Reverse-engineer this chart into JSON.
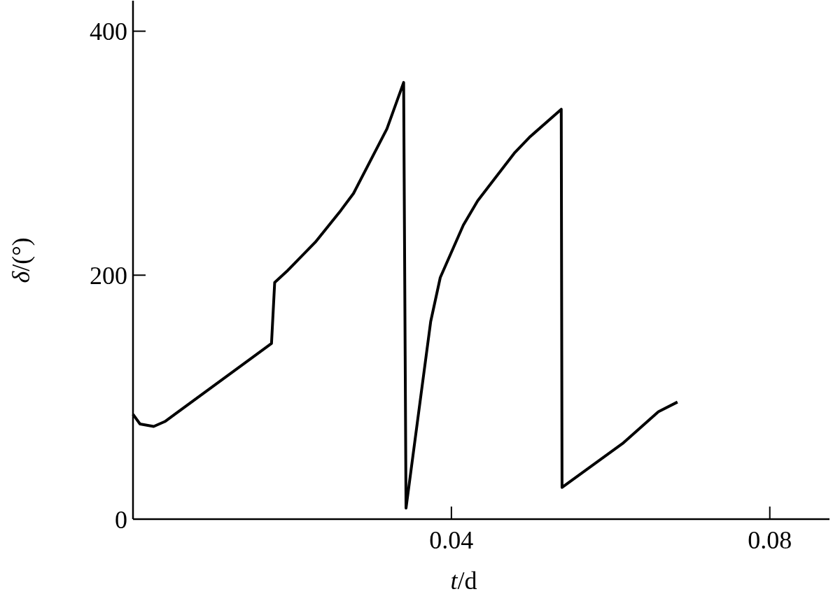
{
  "chart_data": {
    "type": "line",
    "xlabel": "t/d",
    "ylabel": "δ/(°)",
    "xlim": [
      0,
      0.0875
    ],
    "ylim": [
      0,
      425
    ],
    "xticks": [
      0.04,
      0.08
    ],
    "yticks": [
      0,
      200,
      400
    ],
    "marker": "none",
    "line_style": "solid",
    "series": [
      {
        "color": "#000000",
        "x": [
          0,
          0.00088,
          0.0026,
          0.004,
          0.0174,
          0.0178,
          0.0193,
          0.0229,
          0.0261,
          0.0277,
          0.0319,
          0.034,
          0.0343,
          0.0362,
          0.0374,
          0.0386,
          0.0415,
          0.0433,
          0.0479,
          0.0498,
          0.0538,
          0.0539,
          0.0615,
          0.066,
          0.0684
        ],
        "values": [
          86,
          78,
          76,
          80,
          144,
          194,
          203,
          227,
          253,
          267,
          320,
          358,
          9,
          103,
          162,
          198,
          241,
          261,
          300,
          313,
          336,
          26,
          62,
          88,
          96
        ]
      }
    ]
  }
}
